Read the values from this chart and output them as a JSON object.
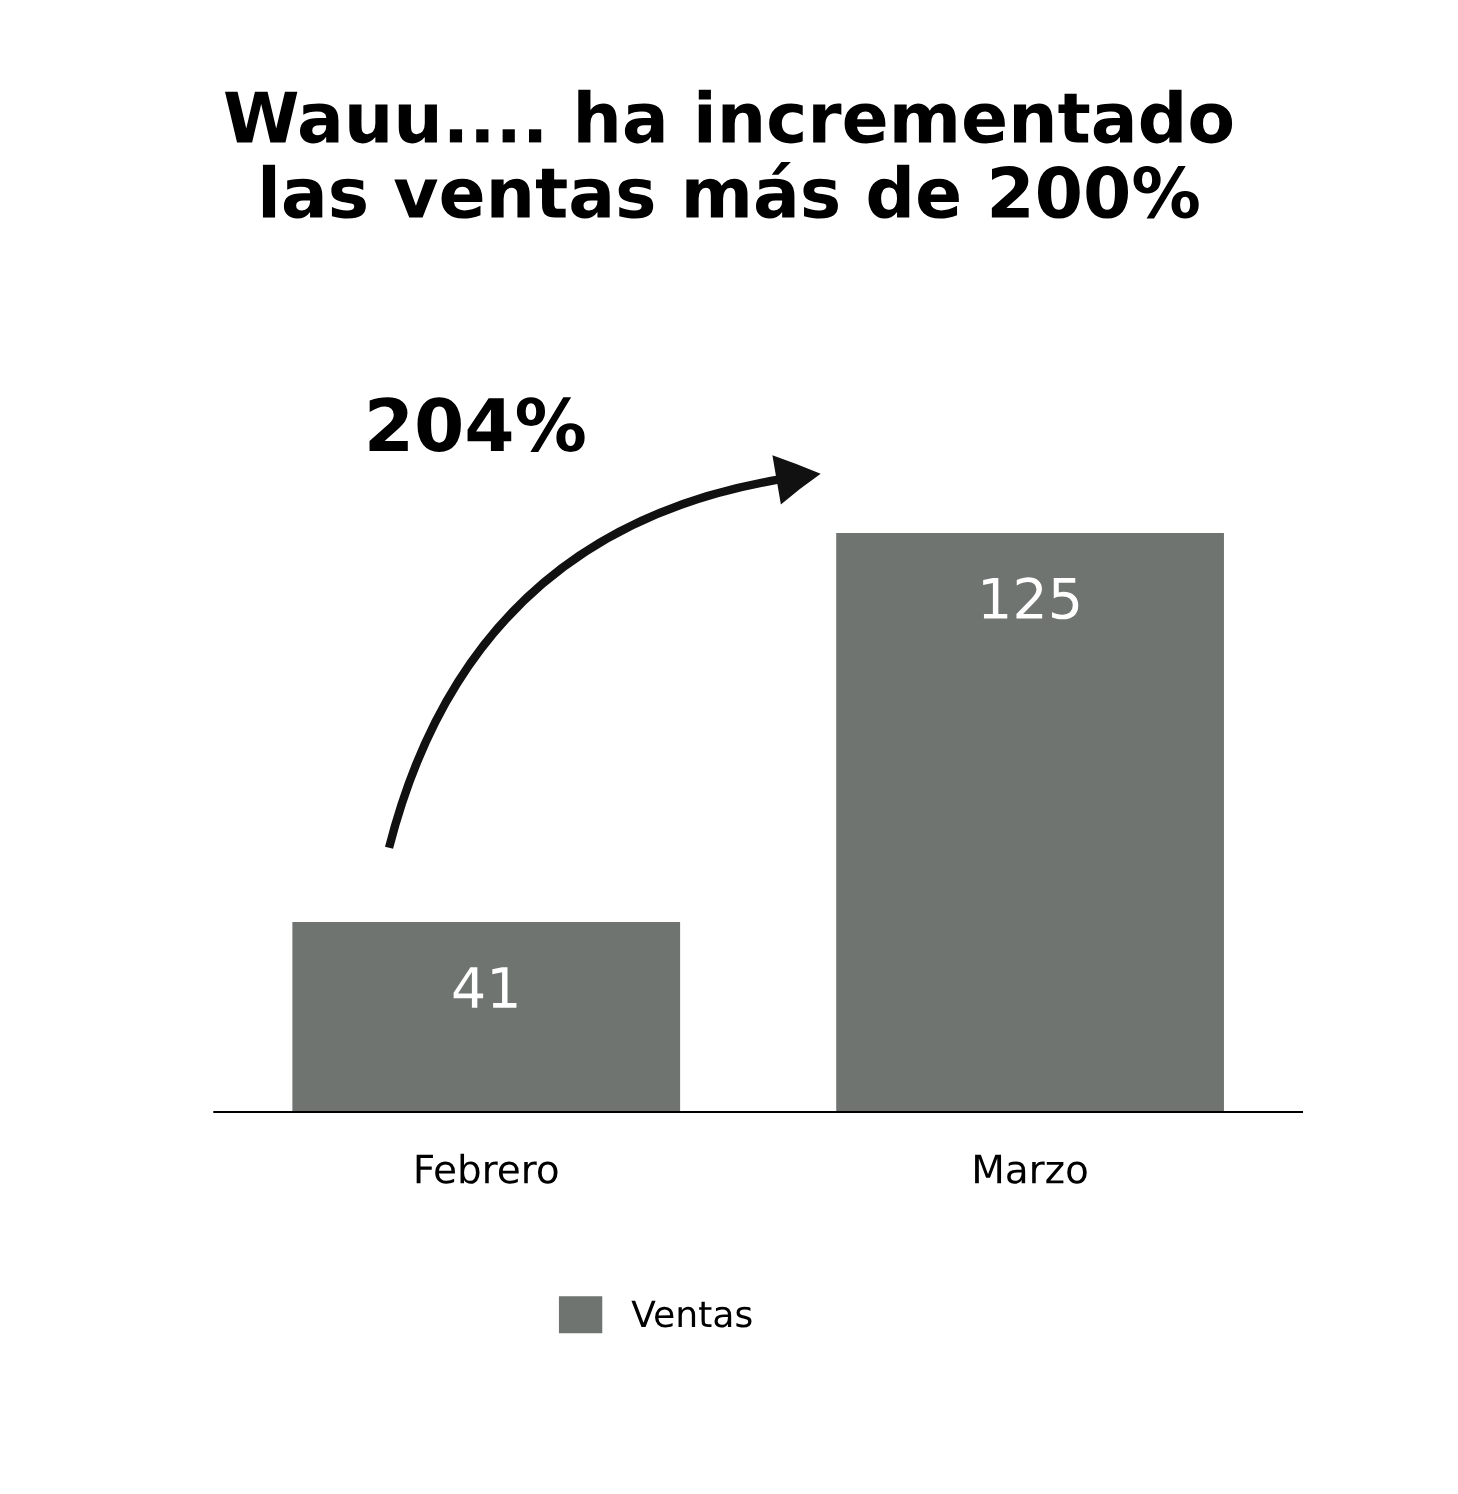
{
  "chart_data": {
    "type": "bar",
    "title": "Wauu.... ha incrementado\nlas ventas más de 200%",
    "categories": [
      "Febrero",
      "Marzo"
    ],
    "series": [
      {
        "name": "Ventas",
        "color": "#6f7471",
        "values": [
          41,
          125
        ]
      }
    ],
    "data_labels": true,
    "tick_labels": "x",
    "grid": false,
    "legend": "bottom",
    "annotations": [
      "204%"
    ]
  }
}
